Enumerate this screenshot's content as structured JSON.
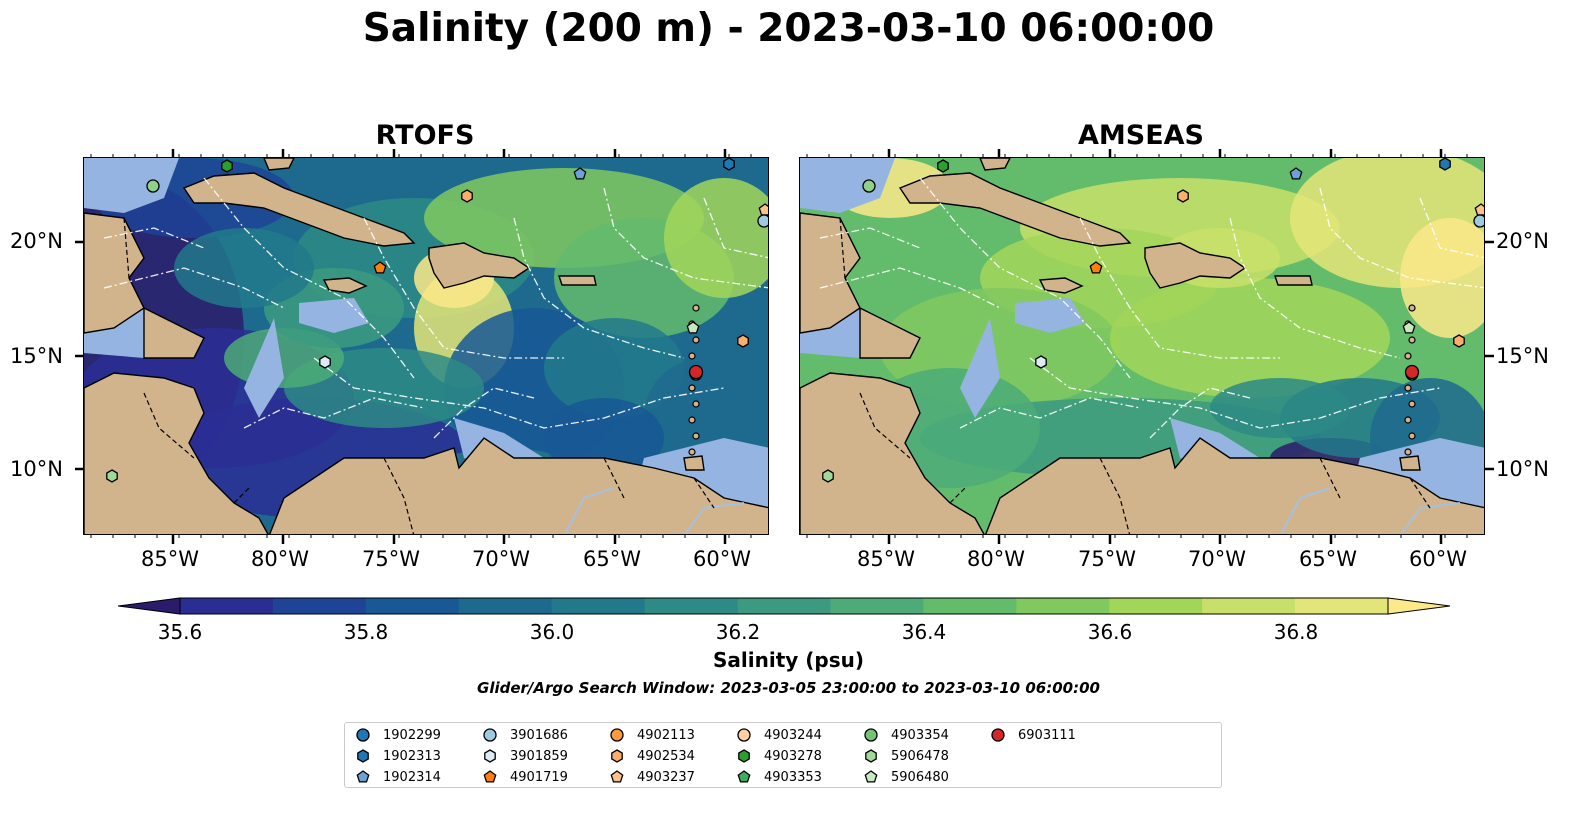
{
  "title": "Salinity (200 m) - 2023-03-10 06:00:00",
  "panels": [
    {
      "title": "RTOFS"
    },
    {
      "title": "AMSEAS"
    }
  ],
  "lon_ticks": [
    "85°W",
    "80°W",
    "75°W",
    "70°W",
    "65°W",
    "60°W"
  ],
  "lat_ticks": [
    "20°N",
    "15°N",
    "10°N"
  ],
  "colorbar": {
    "label": "Salinity (psu)",
    "ticks": [
      "35.6",
      "35.8",
      "36.0",
      "36.2",
      "36.4",
      "36.6",
      "36.8"
    ],
    "colors": [
      "#2b1b6b",
      "#2a2e94",
      "#1f4396",
      "#175895",
      "#1e6a8f",
      "#22798b",
      "#2d8a85",
      "#3c9a80",
      "#4cab78",
      "#63bb6c",
      "#80c95f",
      "#a2d659",
      "#c8e06a",
      "#e4e578",
      "#fbe98a"
    ]
  },
  "search_window": "Glider/Argo Search Window: 2023-03-05 23:00:00 to 2023-03-10 06:00:00",
  "legend": [
    {
      "id": "1902299",
      "marker": "circle",
      "color": "#1f77b4"
    },
    {
      "id": "1902313",
      "marker": "hexagon",
      "color": "#1f77b4"
    },
    {
      "id": "1902314",
      "marker": "pentagon",
      "color": "#6ba3d6"
    },
    {
      "id": "3901686",
      "marker": "circle",
      "color": "#9ecae1"
    },
    {
      "id": "3901859",
      "marker": "hexagon",
      "color": "#deebf7"
    },
    {
      "id": "4901719",
      "marker": "pentagon",
      "color": "#ff7f0e"
    },
    {
      "id": "4902113",
      "marker": "circle",
      "color": "#fd9a3c"
    },
    {
      "id": "4902534",
      "marker": "hexagon",
      "color": "#fdae6b"
    },
    {
      "id": "4903237",
      "marker": "pentagon",
      "color": "#fdc08a"
    },
    {
      "id": "4903244",
      "marker": "circle",
      "color": "#fdd0a2"
    },
    {
      "id": "4903278",
      "marker": "hexagon",
      "color": "#2ca02c"
    },
    {
      "id": "4903353",
      "marker": "pentagon",
      "color": "#41ab5d"
    },
    {
      "id": "4903354",
      "marker": "circle",
      "color": "#74c476"
    },
    {
      "id": "5906478",
      "marker": "hexagon",
      "color": "#a1d99b"
    },
    {
      "id": "5906480",
      "marker": "pentagon",
      "color": "#c7e9c0"
    },
    {
      "id": "6903111",
      "marker": "circle",
      "color": "#d62728"
    }
  ],
  "map_colors": {
    "land": "#d2b48c",
    "shallow": "#96b4e1",
    "coast": "#000000",
    "river": "#a7c0dd"
  }
}
